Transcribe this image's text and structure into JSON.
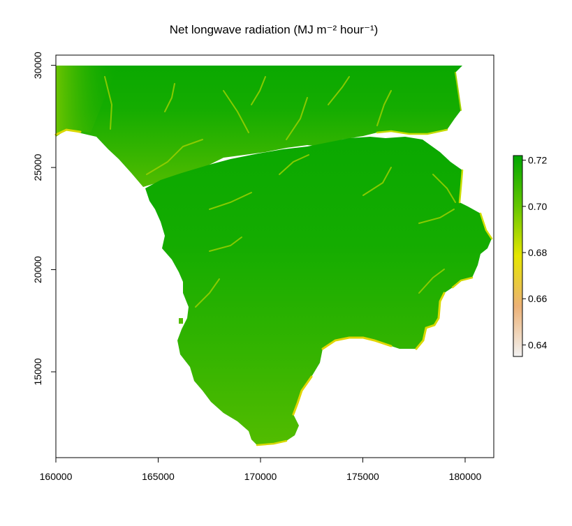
{
  "chart_data": {
    "type": "heatmap",
    "title": "Net longwave radiation (MJ m⁻² hour⁻¹)",
    "xlabel": "",
    "ylabel": "",
    "xlim": [
      160000,
      181400
    ],
    "ylim": [
      10800,
      30500
    ],
    "x_ticks": [
      160000,
      165000,
      170000,
      175000,
      180000
    ],
    "x_tick_labels": [
      "160000",
      "165000",
      "170000",
      "175000",
      "180000"
    ],
    "y_ticks": [
      15000,
      20000,
      25000,
      30000
    ],
    "y_tick_labels": [
      "15000",
      "20000",
      "25000",
      "30000"
    ],
    "grid": false,
    "legend": {
      "placement": "right",
      "type": "colorbar",
      "range": [
        0.635,
        0.722
      ],
      "ticks": [
        0.64,
        0.66,
        0.68,
        0.7,
        0.72
      ],
      "tick_labels": [
        "0.64",
        "0.66",
        "0.68",
        "0.70",
        "0.72"
      ],
      "colors": [
        "#f2f2f2",
        "#ecb176",
        "#e6e600",
        "#63c600",
        "#00a600"
      ]
    },
    "values_note_colors": {
      "high": "#00a600",
      "mid": "#4ab900",
      "low": "#e6e600"
    }
  }
}
